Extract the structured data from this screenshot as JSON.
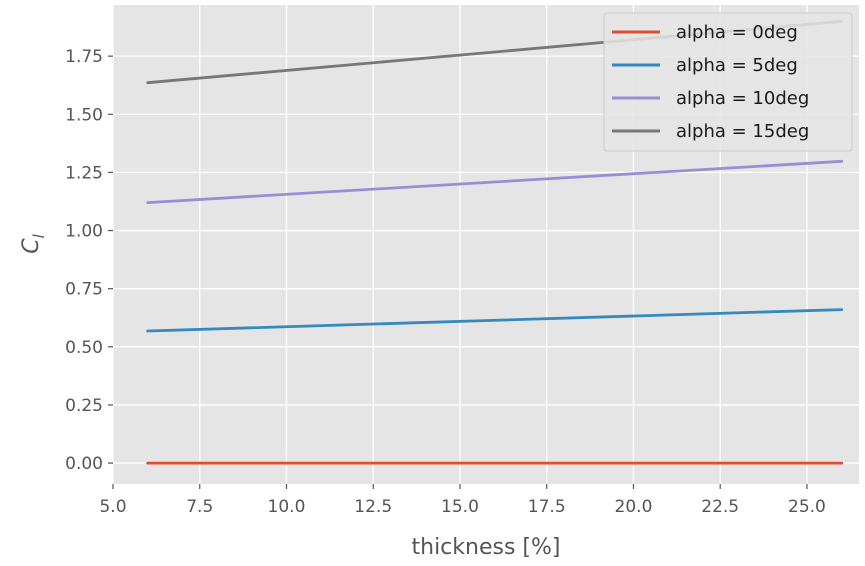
{
  "chart_data": {
    "type": "line",
    "xlabel": "thickness [%]",
    "ylabel": "C",
    "ylabel_subscript": "l",
    "xlim": [
      5.0,
      26.5
    ],
    "ylim": [
      -0.09,
      1.97
    ],
    "xticks": [
      5.0,
      7.5,
      10.0,
      12.5,
      15.0,
      17.5,
      20.0,
      22.5,
      25.0
    ],
    "xtick_labels": [
      "5.0",
      "7.5",
      "10.0",
      "12.5",
      "15.0",
      "17.5",
      "20.0",
      "22.5",
      "25.0"
    ],
    "yticks": [
      0.0,
      0.25,
      0.5,
      0.75,
      1.0,
      1.25,
      1.5,
      1.75
    ],
    "ytick_labels": [
      "0.00",
      "0.25",
      "0.50",
      "0.75",
      "1.00",
      "1.25",
      "1.50",
      "1.75"
    ],
    "grid": true,
    "legend_position": "top-right",
    "series": [
      {
        "name": "alpha = 0deg",
        "color": "#E24A33",
        "x": [
          6,
          26
        ],
        "y": [
          0.0,
          0.0
        ]
      },
      {
        "name": "alpha = 5deg",
        "color": "#348ABD",
        "x": [
          6,
          26
        ],
        "y": [
          0.568,
          0.66
        ]
      },
      {
        "name": "alpha = 10deg",
        "color": "#988ED5",
        "x": [
          6,
          26
        ],
        "y": [
          1.12,
          1.298
        ]
      },
      {
        "name": "alpha = 15deg",
        "color": "#777777",
        "x": [
          6,
          26
        ],
        "y": [
          1.636,
          1.9
        ]
      }
    ]
  }
}
